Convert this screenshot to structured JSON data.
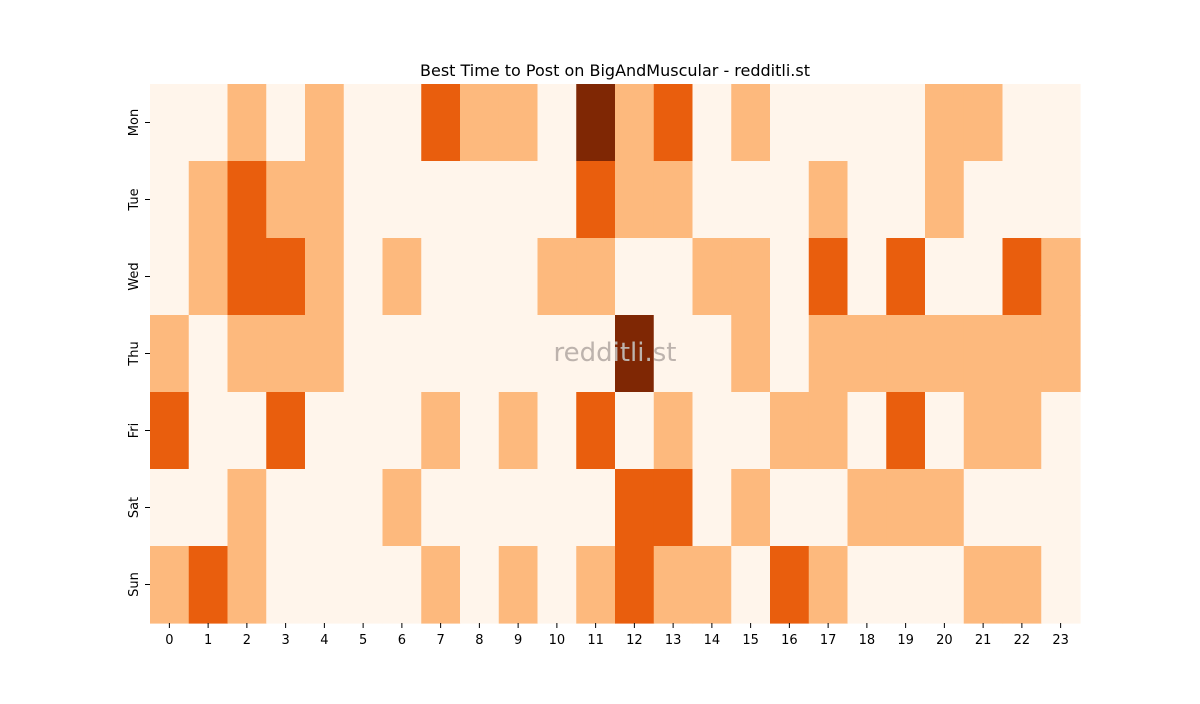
{
  "chart_data": {
    "type": "heatmap",
    "title": "Best Time to Post on BigAndMuscular - redditli.st",
    "watermark": "redditli.st",
    "x_categories": [
      "0",
      "1",
      "2",
      "3",
      "4",
      "5",
      "6",
      "7",
      "8",
      "9",
      "10",
      "11",
      "12",
      "13",
      "14",
      "15",
      "16",
      "17",
      "18",
      "19",
      "20",
      "21",
      "22",
      "23"
    ],
    "y_categories": [
      "Mon",
      "Tue",
      "Wed",
      "Thu",
      "Fri",
      "Sat",
      "Sun"
    ],
    "values": [
      [
        0,
        0,
        1,
        0,
        1,
        0,
        0,
        2,
        1,
        1,
        0,
        3,
        1,
        2,
        0,
        1,
        0,
        0,
        0,
        0,
        1,
        1,
        0,
        0
      ],
      [
        0,
        1,
        2,
        1,
        1,
        0,
        0,
        0,
        0,
        0,
        0,
        2,
        1,
        1,
        0,
        0,
        0,
        1,
        0,
        0,
        1,
        0,
        0,
        0
      ],
      [
        0,
        1,
        2,
        2,
        1,
        0,
        1,
        0,
        0,
        0,
        1,
        1,
        0,
        0,
        1,
        1,
        0,
        2,
        0,
        2,
        0,
        0,
        2,
        1
      ],
      [
        1,
        0,
        1,
        1,
        1,
        0,
        0,
        0,
        0,
        0,
        0,
        0,
        3,
        0,
        0,
        1,
        0,
        1,
        1,
        1,
        1,
        1,
        1,
        1
      ],
      [
        2,
        0,
        0,
        2,
        0,
        0,
        0,
        1,
        0,
        1,
        0,
        2,
        0,
        1,
        0,
        0,
        1,
        1,
        0,
        2,
        0,
        1,
        1,
        0
      ],
      [
        0,
        0,
        1,
        0,
        0,
        0,
        1,
        0,
        0,
        0,
        0,
        0,
        2,
        2,
        0,
        1,
        0,
        0,
        1,
        1,
        1,
        0,
        0,
        0
      ],
      [
        1,
        2,
        1,
        0,
        0,
        0,
        0,
        1,
        0,
        1,
        0,
        1,
        2,
        1,
        1,
        0,
        2,
        1,
        0,
        0,
        0,
        1,
        1,
        0
      ]
    ],
    "value_range": [
      0,
      3
    ],
    "colormap": "Oranges",
    "level_colors": [
      "#fff5eb",
      "#fdb97d",
      "#e95e0d",
      "#7f2704"
    ],
    "colorbar": false,
    "grid": false,
    "xlabel": "",
    "ylabel": ""
  }
}
